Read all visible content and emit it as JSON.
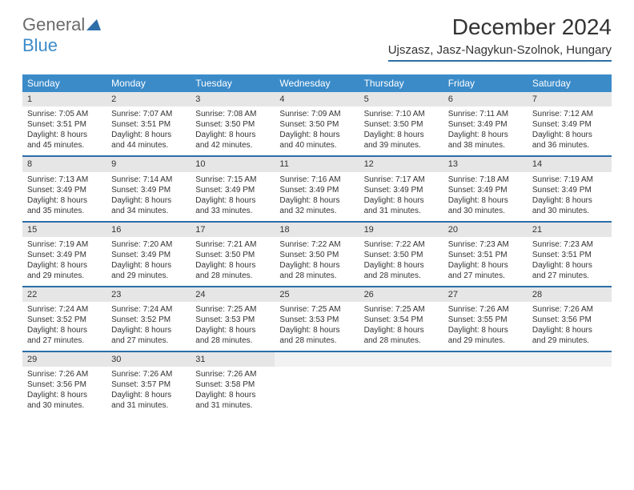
{
  "logo": {
    "part1": "General",
    "part2": "Blue"
  },
  "title": "December 2024",
  "location": "Ujszasz, Jasz-Nagykun-Szolnok, Hungary",
  "colors": {
    "header_bg": "#3b8bc9",
    "header_text": "#ffffff",
    "daynum_bg": "#e6e6e6",
    "week_border": "#2d6ea8",
    "logo_gray": "#6b6b6b",
    "logo_blue": "#3b8bc9",
    "text": "#333333",
    "background": "#ffffff"
  },
  "fonts": {
    "month_title_size": 28,
    "location_size": 15,
    "day_header_size": 12,
    "day_num_size": 11,
    "body_size": 10
  },
  "day_headers": [
    "Sunday",
    "Monday",
    "Tuesday",
    "Wednesday",
    "Thursday",
    "Friday",
    "Saturday"
  ],
  "weeks": [
    [
      {
        "num": "1",
        "sunrise": "Sunrise: 7:05 AM",
        "sunset": "Sunset: 3:51 PM",
        "day1": "Daylight: 8 hours",
        "day2": "and 45 minutes."
      },
      {
        "num": "2",
        "sunrise": "Sunrise: 7:07 AM",
        "sunset": "Sunset: 3:51 PM",
        "day1": "Daylight: 8 hours",
        "day2": "and 44 minutes."
      },
      {
        "num": "3",
        "sunrise": "Sunrise: 7:08 AM",
        "sunset": "Sunset: 3:50 PM",
        "day1": "Daylight: 8 hours",
        "day2": "and 42 minutes."
      },
      {
        "num": "4",
        "sunrise": "Sunrise: 7:09 AM",
        "sunset": "Sunset: 3:50 PM",
        "day1": "Daylight: 8 hours",
        "day2": "and 40 minutes."
      },
      {
        "num": "5",
        "sunrise": "Sunrise: 7:10 AM",
        "sunset": "Sunset: 3:50 PM",
        "day1": "Daylight: 8 hours",
        "day2": "and 39 minutes."
      },
      {
        "num": "6",
        "sunrise": "Sunrise: 7:11 AM",
        "sunset": "Sunset: 3:49 PM",
        "day1": "Daylight: 8 hours",
        "day2": "and 38 minutes."
      },
      {
        "num": "7",
        "sunrise": "Sunrise: 7:12 AM",
        "sunset": "Sunset: 3:49 PM",
        "day1": "Daylight: 8 hours",
        "day2": "and 36 minutes."
      }
    ],
    [
      {
        "num": "8",
        "sunrise": "Sunrise: 7:13 AM",
        "sunset": "Sunset: 3:49 PM",
        "day1": "Daylight: 8 hours",
        "day2": "and 35 minutes."
      },
      {
        "num": "9",
        "sunrise": "Sunrise: 7:14 AM",
        "sunset": "Sunset: 3:49 PM",
        "day1": "Daylight: 8 hours",
        "day2": "and 34 minutes."
      },
      {
        "num": "10",
        "sunrise": "Sunrise: 7:15 AM",
        "sunset": "Sunset: 3:49 PM",
        "day1": "Daylight: 8 hours",
        "day2": "and 33 minutes."
      },
      {
        "num": "11",
        "sunrise": "Sunrise: 7:16 AM",
        "sunset": "Sunset: 3:49 PM",
        "day1": "Daylight: 8 hours",
        "day2": "and 32 minutes."
      },
      {
        "num": "12",
        "sunrise": "Sunrise: 7:17 AM",
        "sunset": "Sunset: 3:49 PM",
        "day1": "Daylight: 8 hours",
        "day2": "and 31 minutes."
      },
      {
        "num": "13",
        "sunrise": "Sunrise: 7:18 AM",
        "sunset": "Sunset: 3:49 PM",
        "day1": "Daylight: 8 hours",
        "day2": "and 30 minutes."
      },
      {
        "num": "14",
        "sunrise": "Sunrise: 7:19 AM",
        "sunset": "Sunset: 3:49 PM",
        "day1": "Daylight: 8 hours",
        "day2": "and 30 minutes."
      }
    ],
    [
      {
        "num": "15",
        "sunrise": "Sunrise: 7:19 AM",
        "sunset": "Sunset: 3:49 PM",
        "day1": "Daylight: 8 hours",
        "day2": "and 29 minutes."
      },
      {
        "num": "16",
        "sunrise": "Sunrise: 7:20 AM",
        "sunset": "Sunset: 3:49 PM",
        "day1": "Daylight: 8 hours",
        "day2": "and 29 minutes."
      },
      {
        "num": "17",
        "sunrise": "Sunrise: 7:21 AM",
        "sunset": "Sunset: 3:50 PM",
        "day1": "Daylight: 8 hours",
        "day2": "and 28 minutes."
      },
      {
        "num": "18",
        "sunrise": "Sunrise: 7:22 AM",
        "sunset": "Sunset: 3:50 PM",
        "day1": "Daylight: 8 hours",
        "day2": "and 28 minutes."
      },
      {
        "num": "19",
        "sunrise": "Sunrise: 7:22 AM",
        "sunset": "Sunset: 3:50 PM",
        "day1": "Daylight: 8 hours",
        "day2": "and 28 minutes."
      },
      {
        "num": "20",
        "sunrise": "Sunrise: 7:23 AM",
        "sunset": "Sunset: 3:51 PM",
        "day1": "Daylight: 8 hours",
        "day2": "and 27 minutes."
      },
      {
        "num": "21",
        "sunrise": "Sunrise: 7:23 AM",
        "sunset": "Sunset: 3:51 PM",
        "day1": "Daylight: 8 hours",
        "day2": "and 27 minutes."
      }
    ],
    [
      {
        "num": "22",
        "sunrise": "Sunrise: 7:24 AM",
        "sunset": "Sunset: 3:52 PM",
        "day1": "Daylight: 8 hours",
        "day2": "and 27 minutes."
      },
      {
        "num": "23",
        "sunrise": "Sunrise: 7:24 AM",
        "sunset": "Sunset: 3:52 PM",
        "day1": "Daylight: 8 hours",
        "day2": "and 27 minutes."
      },
      {
        "num": "24",
        "sunrise": "Sunrise: 7:25 AM",
        "sunset": "Sunset: 3:53 PM",
        "day1": "Daylight: 8 hours",
        "day2": "and 28 minutes."
      },
      {
        "num": "25",
        "sunrise": "Sunrise: 7:25 AM",
        "sunset": "Sunset: 3:53 PM",
        "day1": "Daylight: 8 hours",
        "day2": "and 28 minutes."
      },
      {
        "num": "26",
        "sunrise": "Sunrise: 7:25 AM",
        "sunset": "Sunset: 3:54 PM",
        "day1": "Daylight: 8 hours",
        "day2": "and 28 minutes."
      },
      {
        "num": "27",
        "sunrise": "Sunrise: 7:26 AM",
        "sunset": "Sunset: 3:55 PM",
        "day1": "Daylight: 8 hours",
        "day2": "and 29 minutes."
      },
      {
        "num": "28",
        "sunrise": "Sunrise: 7:26 AM",
        "sunset": "Sunset: 3:56 PM",
        "day1": "Daylight: 8 hours",
        "day2": "and 29 minutes."
      }
    ],
    [
      {
        "num": "29",
        "sunrise": "Sunrise: 7:26 AM",
        "sunset": "Sunset: 3:56 PM",
        "day1": "Daylight: 8 hours",
        "day2": "and 30 minutes."
      },
      {
        "num": "30",
        "sunrise": "Sunrise: 7:26 AM",
        "sunset": "Sunset: 3:57 PM",
        "day1": "Daylight: 8 hours",
        "day2": "and 31 minutes."
      },
      {
        "num": "31",
        "sunrise": "Sunrise: 7:26 AM",
        "sunset": "Sunset: 3:58 PM",
        "day1": "Daylight: 8 hours",
        "day2": "and 31 minutes."
      },
      {
        "empty": true
      },
      {
        "empty": true
      },
      {
        "empty": true
      },
      {
        "empty": true
      }
    ]
  ]
}
